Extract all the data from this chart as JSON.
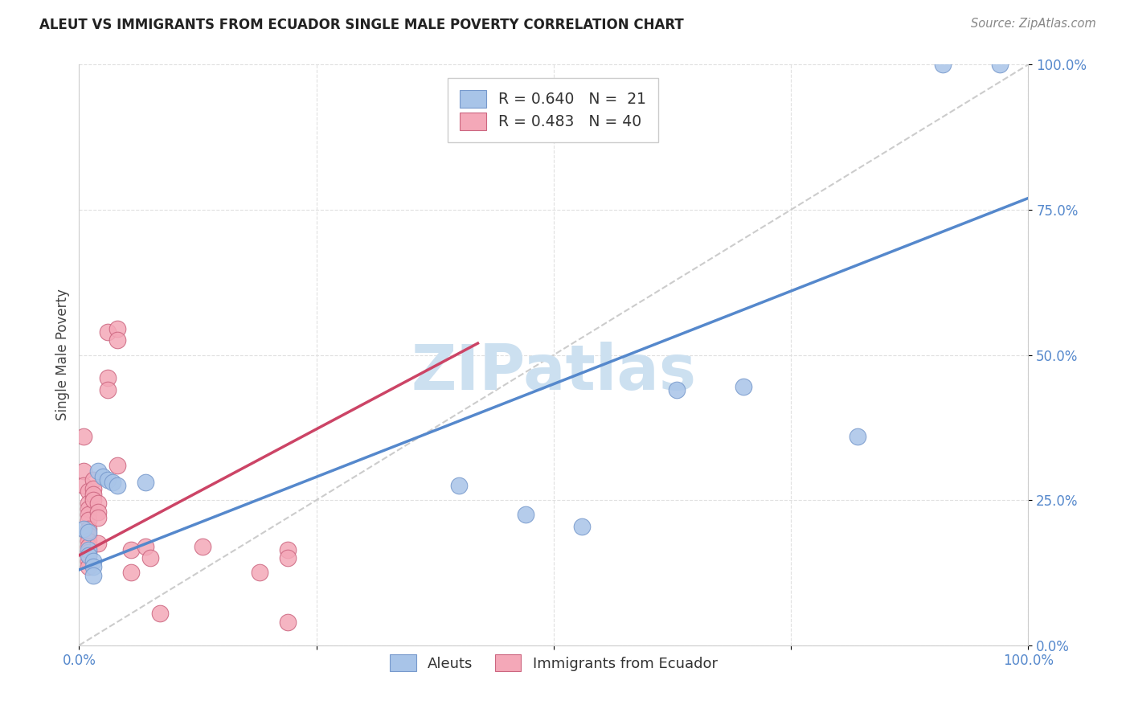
{
  "title": "ALEUT VS IMMIGRANTS FROM ECUADOR SINGLE MALE POVERTY CORRELATION CHART",
  "source": "Source: ZipAtlas.com",
  "ylabel": "Single Male Poverty",
  "xlim": [
    0.0,
    1.0
  ],
  "ylim": [
    0.0,
    1.0
  ],
  "ytick_labels": [
    "0.0%",
    "25.0%",
    "50.0%",
    "75.0%",
    "100.0%"
  ],
  "ytick_positions": [
    0.0,
    0.25,
    0.5,
    0.75,
    1.0
  ],
  "grid_color": "#e0e0e0",
  "background_color": "#ffffff",
  "watermark_text": "ZIPatlas",
  "watermark_color": "#cce0f0",
  "legend_r1": "R = 0.640",
  "legend_n1": "N =  21",
  "legend_r2": "R = 0.483",
  "legend_n2": "N = 40",
  "blue_fill": "#a8c4e8",
  "pink_fill": "#f4a8b8",
  "blue_edge": "#7799cc",
  "pink_edge": "#cc6680",
  "blue_line_color": "#5588cc",
  "pink_line_color": "#cc4466",
  "diagonal_color": "#cccccc",
  "aleuts_points": [
    [
      0.005,
      0.2
    ],
    [
      0.01,
      0.195
    ],
    [
      0.01,
      0.165
    ],
    [
      0.01,
      0.155
    ],
    [
      0.015,
      0.145
    ],
    [
      0.015,
      0.135
    ],
    [
      0.015,
      0.12
    ],
    [
      0.02,
      0.3
    ],
    [
      0.025,
      0.29
    ],
    [
      0.03,
      0.285
    ],
    [
      0.035,
      0.28
    ],
    [
      0.04,
      0.275
    ],
    [
      0.07,
      0.28
    ],
    [
      0.4,
      0.275
    ],
    [
      0.47,
      0.225
    ],
    [
      0.53,
      0.205
    ],
    [
      0.63,
      0.44
    ],
    [
      0.7,
      0.445
    ],
    [
      0.82,
      0.36
    ],
    [
      0.91,
      1.0
    ],
    [
      0.97,
      1.0
    ]
  ],
  "ecuador_points": [
    [
      0.005,
      0.36
    ],
    [
      0.005,
      0.3
    ],
    [
      0.005,
      0.275
    ],
    [
      0.01,
      0.265
    ],
    [
      0.01,
      0.245
    ],
    [
      0.01,
      0.235
    ],
    [
      0.01,
      0.225
    ],
    [
      0.01,
      0.215
    ],
    [
      0.01,
      0.2
    ],
    [
      0.01,
      0.19
    ],
    [
      0.01,
      0.18
    ],
    [
      0.01,
      0.17
    ],
    [
      0.01,
      0.16
    ],
    [
      0.01,
      0.155
    ],
    [
      0.01,
      0.145
    ],
    [
      0.01,
      0.135
    ],
    [
      0.015,
      0.285
    ],
    [
      0.015,
      0.27
    ],
    [
      0.015,
      0.26
    ],
    [
      0.015,
      0.25
    ],
    [
      0.02,
      0.245
    ],
    [
      0.02,
      0.23
    ],
    [
      0.02,
      0.22
    ],
    [
      0.02,
      0.175
    ],
    [
      0.03,
      0.54
    ],
    [
      0.03,
      0.46
    ],
    [
      0.03,
      0.44
    ],
    [
      0.04,
      0.545
    ],
    [
      0.04,
      0.525
    ],
    [
      0.04,
      0.31
    ],
    [
      0.055,
      0.165
    ],
    [
      0.055,
      0.125
    ],
    [
      0.07,
      0.17
    ],
    [
      0.075,
      0.15
    ],
    [
      0.085,
      0.055
    ],
    [
      0.13,
      0.17
    ],
    [
      0.19,
      0.125
    ],
    [
      0.22,
      0.165
    ],
    [
      0.22,
      0.15
    ],
    [
      0.22,
      0.04
    ]
  ],
  "blue_line_x": [
    0.0,
    1.0
  ],
  "blue_line_y": [
    0.13,
    0.77
  ],
  "pink_line_x": [
    0.0,
    0.42
  ],
  "pink_line_y": [
    0.155,
    0.52
  ],
  "diag_line": [
    [
      0.0,
      0.0
    ],
    [
      1.0,
      1.0
    ]
  ]
}
